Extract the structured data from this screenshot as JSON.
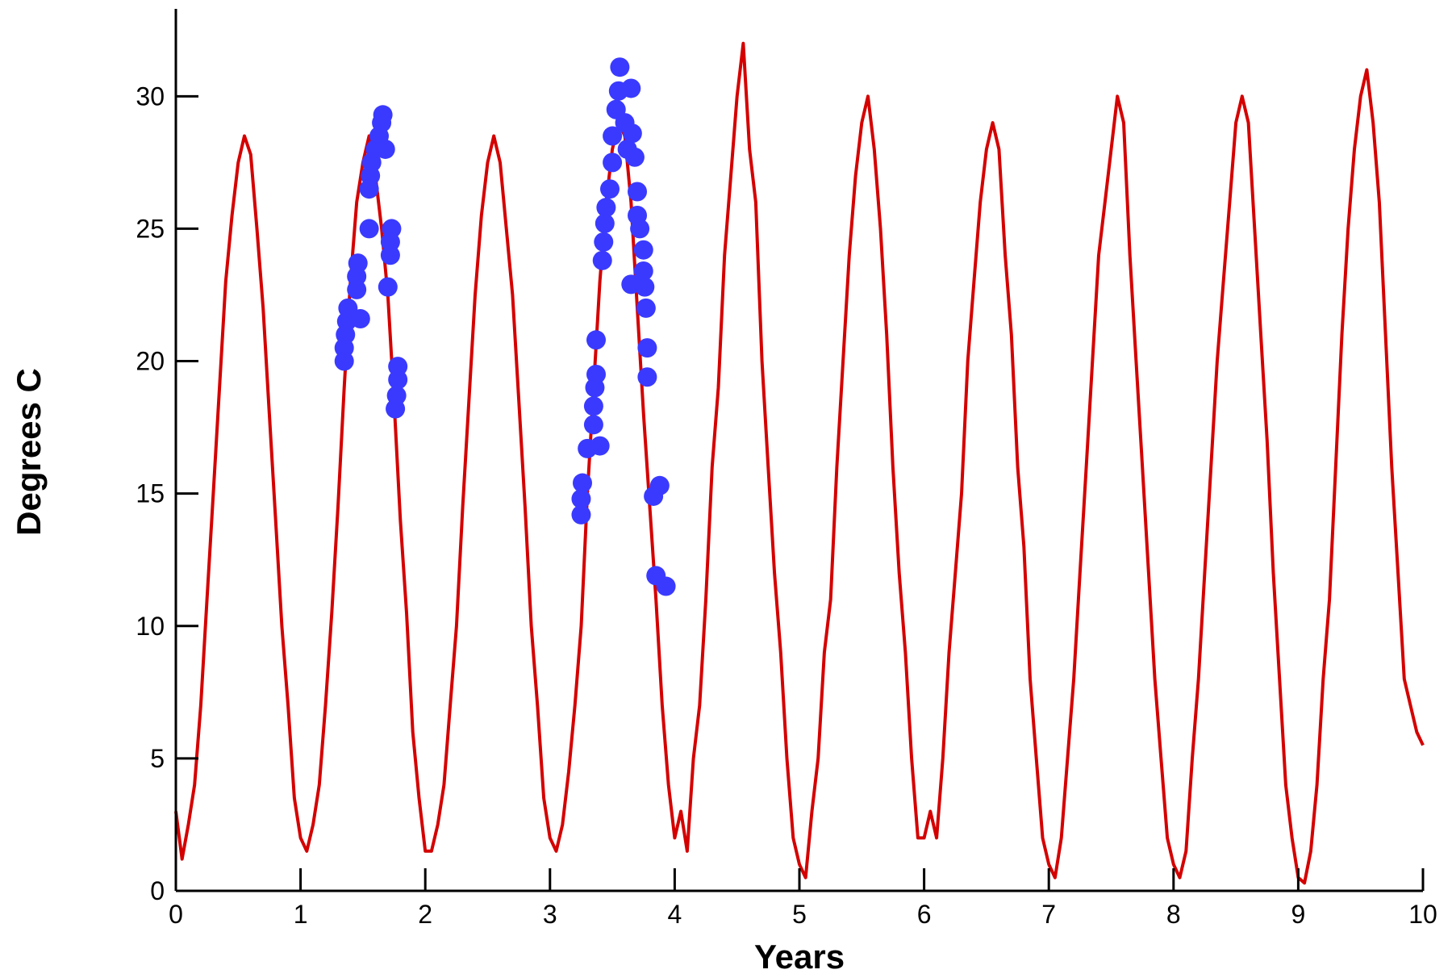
{
  "chart_data": {
    "type": "line",
    "xlabel": "Years",
    "ylabel": "Degrees C",
    "xlim": [
      0,
      10
    ],
    "ylim": [
      0,
      33.3
    ],
    "xticks": [
      0,
      1,
      2,
      3,
      4,
      5,
      6,
      7,
      8,
      9,
      10
    ],
    "yticks": [
      0,
      5,
      10,
      15,
      20,
      25,
      30
    ],
    "series": [
      {
        "type": "line",
        "color": "#d40000",
        "x": [
          0,
          0.05,
          0.1,
          0.15,
          0.2,
          0.25,
          0.3,
          0.35,
          0.4,
          0.45,
          0.5,
          0.55,
          0.6,
          0.65,
          0.7,
          0.75,
          0.8,
          0.85,
          0.9,
          0.95,
          1,
          1.05,
          1.1,
          1.15,
          1.2,
          1.25,
          1.3,
          1.35,
          1.4,
          1.45,
          1.5,
          1.55,
          1.6,
          1.65,
          1.7,
          1.75,
          1.8,
          1.85,
          1.9,
          1.95,
          2,
          2.05,
          2.1,
          2.15,
          2.2,
          2.25,
          2.3,
          2.35,
          2.4,
          2.45,
          2.5,
          2.55,
          2.6,
          2.65,
          2.7,
          2.75,
          2.8,
          2.85,
          2.9,
          2.95,
          3,
          3.05,
          3.1,
          3.15,
          3.2,
          3.25,
          3.3,
          3.35,
          3.4,
          3.45,
          3.5,
          3.55,
          3.6,
          3.65,
          3.7,
          3.75,
          3.8,
          3.85,
          3.9,
          3.95,
          4,
          4.05,
          4.1,
          4.15,
          4.2,
          4.25,
          4.3,
          4.35,
          4.4,
          4.45,
          4.5,
          4.55,
          4.6,
          4.65,
          4.7,
          4.75,
          4.8,
          4.85,
          4.9,
          4.95,
          5,
          5.05,
          5.1,
          5.15,
          5.2,
          5.25,
          5.3,
          5.35,
          5.4,
          5.45,
          5.5,
          5.55,
          5.6,
          5.65,
          5.7,
          5.75,
          5.8,
          5.85,
          5.9,
          5.95,
          6,
          6.05,
          6.1,
          6.15,
          6.2,
          6.25,
          6.3,
          6.35,
          6.4,
          6.45,
          6.5,
          6.55,
          6.6,
          6.65,
          6.7,
          6.75,
          6.8,
          6.85,
          6.9,
          6.95,
          7,
          7.05,
          7.1,
          7.15,
          7.2,
          7.25,
          7.3,
          7.35,
          7.4,
          7.45,
          7.5,
          7.55,
          7.6,
          7.65,
          7.7,
          7.75,
          7.8,
          7.85,
          7.9,
          7.95,
          8,
          8.05,
          8.1,
          8.15,
          8.2,
          8.25,
          8.3,
          8.35,
          8.4,
          8.45,
          8.5,
          8.55,
          8.6,
          8.65,
          8.7,
          8.75,
          8.8,
          8.85,
          8.9,
          8.95,
          9,
          9.05,
          9.1,
          9.15,
          9.2,
          9.25,
          9.3,
          9.35,
          9.4,
          9.45,
          9.5,
          9.55,
          9.6,
          9.65,
          9.7,
          9.75,
          9.8,
          9.85,
          9.9,
          9.95,
          10
        ],
        "values": [
          3,
          1.2,
          2.5,
          4,
          7,
          11,
          15,
          19,
          23,
          25.5,
          27.5,
          28.5,
          27.8,
          25,
          22,
          18,
          14,
          10,
          7,
          3.5,
          2,
          1.5,
          2.5,
          4,
          7,
          10.5,
          14.5,
          19,
          23,
          26,
          27.5,
          28.5,
          27,
          25,
          22.5,
          18.5,
          14,
          10.5,
          6,
          3.5,
          1.5,
          1.5,
          2.5,
          4,
          7,
          10,
          14.5,
          18.5,
          22.5,
          25.5,
          27.5,
          28.5,
          27.5,
          25,
          22.5,
          18.5,
          14.5,
          10,
          7,
          3.5,
          2,
          1.5,
          2.5,
          4.5,
          7,
          10,
          15,
          19,
          23,
          26,
          28,
          29,
          28.5,
          26,
          22,
          18,
          14.5,
          11,
          7,
          4,
          2,
          3,
          1.5,
          5,
          7,
          11,
          16,
          19,
          24,
          27,
          30,
          32,
          28,
          26,
          20,
          16,
          12,
          9,
          5,
          2,
          1,
          0.5,
          3,
          5,
          9,
          11,
          16,
          20,
          24,
          27,
          29,
          30,
          28,
          25,
          21,
          16,
          12,
          9,
          5,
          2,
          2,
          3,
          2,
          5,
          9,
          12,
          15,
          20,
          23,
          26,
          28,
          29,
          28,
          24,
          21,
          16,
          13,
          8,
          5,
          2,
          1,
          0.5,
          2,
          5,
          8,
          12,
          16,
          20,
          24,
          26,
          28,
          30,
          29,
          24,
          20,
          16,
          12,
          8,
          5,
          2,
          1,
          0.5,
          1.5,
          5,
          8,
          12,
          16,
          20,
          23,
          26,
          29,
          30,
          29,
          25,
          21,
          17,
          12,
          8,
          4,
          2,
          0.5,
          0.3,
          1.5,
          4,
          8,
          11,
          16,
          21,
          25,
          28,
          30,
          31,
          29,
          26,
          21,
          16,
          12,
          8,
          7,
          6,
          5.5
        ]
      },
      {
        "type": "scatter",
        "color": "#3a3aff",
        "x": [
          1.35,
          1.35,
          1.36,
          1.37,
          1.38,
          1.45,
          1.45,
          1.46,
          1.48,
          1.55,
          1.55,
          1.56,
          1.57,
          1.6,
          1.63,
          1.65,
          1.66,
          1.68,
          1.7,
          1.72,
          1.72,
          1.73,
          1.76,
          1.77,
          1.78,
          1.78,
          3.25,
          3.25,
          3.26,
          3.3,
          3.35,
          3.35,
          3.36,
          3.37,
          3.4,
          3.37,
          3.42,
          3.43,
          3.44,
          3.45,
          3.48,
          3.5,
          3.5,
          3.53,
          3.55,
          3.56,
          3.6,
          3.62,
          3.65,
          3.66,
          3.68,
          3.65,
          3.7,
          3.7,
          3.72,
          3.75,
          3.75,
          3.76,
          3.77,
          3.78,
          3.78,
          3.83,
          3.88,
          3.85,
          3.93
        ],
        "values": [
          20,
          20.5,
          21,
          21.5,
          22,
          22.7,
          23.2,
          23.7,
          21.6,
          25,
          26.5,
          27,
          27.5,
          28,
          28.5,
          29,
          29.3,
          28,
          22.8,
          24,
          24.5,
          25,
          18.2,
          18.7,
          19.3,
          19.8,
          14.2,
          14.8,
          15.4,
          16.7,
          17.6,
          18.3,
          19,
          19.5,
          16.8,
          20.8,
          23.8,
          24.5,
          25.2,
          25.8,
          26.5,
          27.5,
          28.5,
          29.5,
          30.2,
          31.1,
          29,
          28,
          30.3,
          28.6,
          27.7,
          22.9,
          26.4,
          25.5,
          25,
          24.2,
          23.4,
          22.8,
          22,
          20.5,
          19.4,
          14.9,
          15.3,
          11.9,
          11.5
        ]
      }
    ]
  }
}
